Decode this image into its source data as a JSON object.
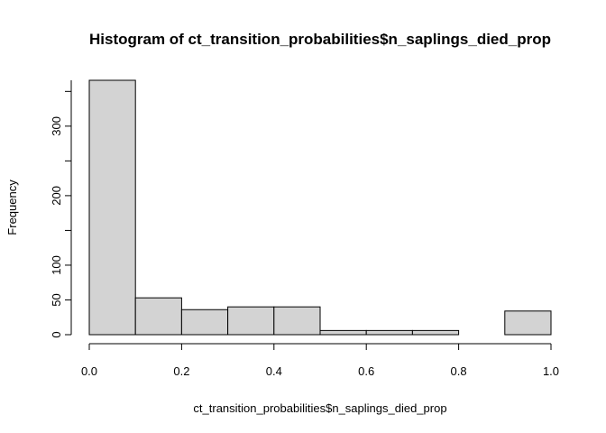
{
  "chart_data": {
    "type": "bar",
    "title": "Histogram of ct_transition_probabilities$n_saplings_died_prop",
    "xlabel": "ct_transition_probabilities$n_saplings_died_prop",
    "ylabel": "Frequency",
    "bins": [
      {
        "x0": 0.0,
        "x1": 0.1,
        "count": 366
      },
      {
        "x0": 0.1,
        "x1": 0.2,
        "count": 53
      },
      {
        "x0": 0.2,
        "x1": 0.3,
        "count": 36
      },
      {
        "x0": 0.3,
        "x1": 0.4,
        "count": 40
      },
      {
        "x0": 0.4,
        "x1": 0.5,
        "count": 40
      },
      {
        "x0": 0.5,
        "x1": 0.6,
        "count": 6
      },
      {
        "x0": 0.6,
        "x1": 0.7,
        "count": 6
      },
      {
        "x0": 0.7,
        "x1": 0.8,
        "count": 6
      },
      {
        "x0": 0.8,
        "x1": 0.9,
        "count": 0
      },
      {
        "x0": 0.9,
        "x1": 1.0,
        "count": 34
      }
    ],
    "xlim": [
      0.0,
      1.0
    ],
    "ylim": [
      0,
      366
    ],
    "xticks": [
      0.0,
      0.2,
      0.4,
      0.6,
      0.8,
      1.0
    ],
    "xtick_labels": [
      "0.0",
      "0.2",
      "0.4",
      "0.6",
      "0.8",
      "1.0"
    ],
    "yticks": [
      0,
      50,
      100,
      200,
      300
    ],
    "ytick_labels": [
      "0",
      "50",
      "100",
      "200",
      "300"
    ],
    "grid": false,
    "colors": {
      "bar_fill": "#d3d3d3",
      "bar_stroke": "#000000"
    }
  }
}
